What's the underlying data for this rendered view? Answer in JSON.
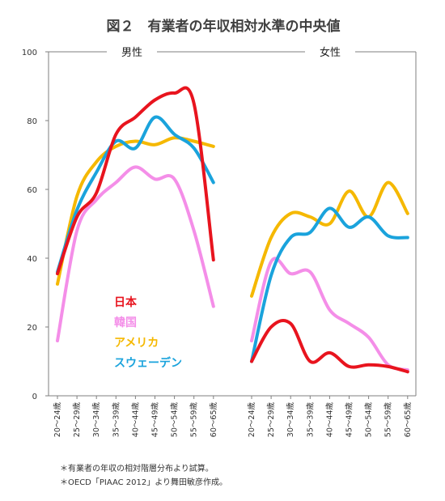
{
  "colors": {
    "japan": "#e8141e",
    "korea": "#f48ee8",
    "america": "#f5b800",
    "sweden": "#1aa3dc",
    "axis": "#7f7f7f"
  },
  "chart_data": {
    "type": "line",
    "title": "図２　有業者の年収相対水準の中央値",
    "ylim": [
      0,
      100
    ],
    "yticks": [
      0,
      20,
      40,
      60,
      80,
      100
    ],
    "categories": [
      "20～24歳",
      "25～29歳",
      "30～34歳",
      "35～39歳",
      "40～44歳",
      "45～49歳",
      "50～54歳",
      "55～59歳",
      "60～65歳"
    ],
    "legend": {
      "placement": "inside-left-panel",
      "entries": [
        "日本",
        "韓国",
        "アメリカ",
        "スウェーデン"
      ]
    },
    "panels": [
      {
        "title": "男性",
        "series": [
          {
            "name": "日本",
            "color_key": "japan",
            "values": [
              35.5,
              52,
              59,
              76,
              81,
              86,
              88,
              85,
              39.5
            ]
          },
          {
            "name": "韓国",
            "color_key": "korea",
            "values": [
              16,
              48,
              57,
              62,
              66.5,
              63,
              63,
              48,
              26
            ]
          },
          {
            "name": "アメリカ",
            "color_key": "america",
            "values": [
              32.5,
              58,
              68,
              72.5,
              74,
              73,
              75,
              74,
              72.5
            ]
          },
          {
            "name": "スウェーデン",
            "color_key": "sweden",
            "values": [
              36,
              54,
              65,
              74,
              72,
              81,
              76,
              72,
              62
            ]
          }
        ]
      },
      {
        "title": "女性",
        "series": [
          {
            "name": "日本",
            "color_key": "japan",
            "values": [
              10,
              20,
              21,
              10,
              12.5,
              8.5,
              9,
              8.5,
              7
            ]
          },
          {
            "name": "韓国",
            "color_key": "korea",
            "values": [
              16,
              39,
              35.5,
              36,
              25,
              21,
              17,
              9,
              7.5
            ]
          },
          {
            "name": "アメリカ",
            "color_key": "america",
            "values": [
              29,
              46,
              53,
              52,
              50,
              59.5,
              52,
              62,
              53
            ]
          },
          {
            "name": "スウェーデン",
            "color_key": "sweden",
            "values": [
              10,
              35,
              46,
              47.5,
              54.5,
              49,
              52,
              46.5,
              46
            ]
          }
        ]
      }
    ]
  },
  "notes": [
    "＊有業者の年収の相対階層分布より試算。",
    "＊OECD「PIAAC 2012」より舞田敏彦作成。"
  ]
}
